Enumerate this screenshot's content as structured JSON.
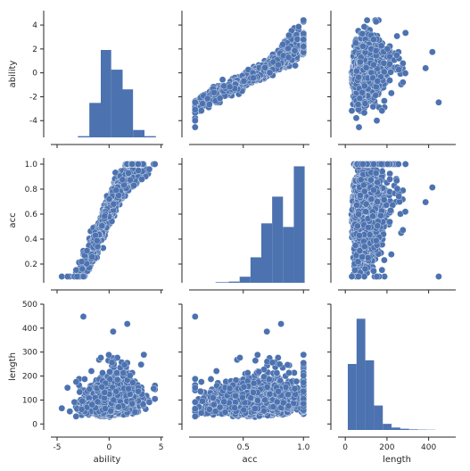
{
  "chart_data": {
    "type": "pairplot",
    "variables": [
      "ability",
      "acc",
      "length"
    ],
    "xlabels": [
      "ability",
      "acc",
      "length"
    ],
    "ylabels": [
      "ability",
      "acc",
      "length"
    ],
    "colors": {
      "points": "#4c72b0",
      "bars": "#4c72b0",
      "axis": "#262626"
    },
    "axes": {
      "ability": {
        "lim": [
          -5.6,
          5.2
        ],
        "ticks": [
          -5,
          0,
          5
        ],
        "tick_labels": [
          "-5",
          "0",
          "5"
        ],
        "row_ticks": [
          -4,
          -2,
          0,
          2,
          4
        ],
        "row_tick_labels": [
          "-4",
          "-2",
          "0",
          "2",
          "4"
        ],
        "row_lim": [
          -5.4,
          5.2
        ]
      },
      "acc": {
        "lim": [
          0.05,
          1.05
        ],
        "ticks": [
          0.5,
          1.0
        ],
        "tick_labels": [
          "0.5",
          "1.0"
        ],
        "row_ticks": [
          0.2,
          0.4,
          0.6,
          0.8,
          1.0
        ],
        "row_tick_labels": [
          "0.2",
          "0.4",
          "0.6",
          "0.8",
          "1.0"
        ],
        "row_lim": [
          0.05,
          1.05
        ]
      },
      "length": {
        "lim": [
          -35,
          530
        ],
        "ticks": [
          0,
          200,
          400
        ],
        "tick_labels": [
          "0",
          "200",
          "400"
        ],
        "row_ticks": [
          0,
          100,
          200,
          300,
          400,
          500
        ],
        "row_tick_labels": [
          "0",
          "100",
          "200",
          "300",
          "400",
          "500"
        ],
        "row_lim": [
          -25,
          500
        ]
      }
    },
    "histograms": {
      "ability": {
        "bins": [
          [
            -3.0,
            -1.9,
            0.01
          ],
          [
            -1.9,
            -0.8,
            0.28
          ],
          [
            -0.8,
            0.2,
            0.71
          ],
          [
            0.2,
            1.3,
            0.55
          ],
          [
            1.3,
            2.3,
            0.39
          ],
          [
            2.3,
            3.4,
            0.06
          ],
          [
            3.4,
            4.5,
            0.01
          ]
        ]
      },
      "acc": {
        "bins": [
          [
            0.27,
            0.38,
            0.005
          ],
          [
            0.38,
            0.47,
            0.01
          ],
          [
            0.47,
            0.56,
            0.05
          ],
          [
            0.56,
            0.65,
            0.21
          ],
          [
            0.65,
            0.74,
            0.49
          ],
          [
            0.74,
            0.83,
            0.71
          ],
          [
            0.83,
            0.92,
            0.46
          ],
          [
            0.92,
            1.01,
            0.96
          ]
        ]
      },
      "length": {
        "bins": [
          [
            12,
            54,
            0.54
          ],
          [
            54,
            96,
            0.91
          ],
          [
            96,
            138,
            0.57
          ],
          [
            138,
            180,
            0.2
          ],
          [
            180,
            222,
            0.05
          ],
          [
            222,
            264,
            0.02
          ],
          [
            264,
            306,
            0.01
          ],
          [
            306,
            348,
            0.005
          ],
          [
            348,
            390,
            0.003
          ],
          [
            390,
            432,
            0.002
          ]
        ]
      }
    },
    "n_points": 1600,
    "legend": "none",
    "grid": false
  }
}
